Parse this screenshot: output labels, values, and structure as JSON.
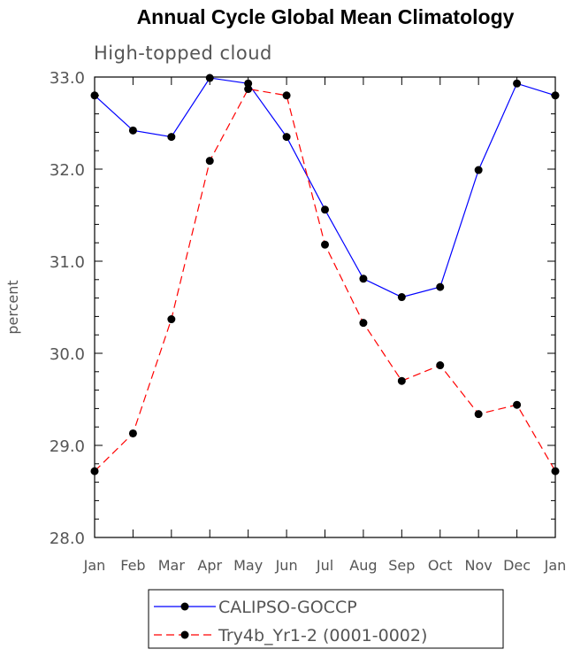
{
  "chart_data": {
    "type": "line",
    "title": "Annual Cycle Global Mean Climatology",
    "subtitle": "High-topped cloud",
    "xlabel": "",
    "ylabel": "percent",
    "categories": [
      "Jan",
      "Feb",
      "Mar",
      "Apr",
      "May",
      "Jun",
      "Jul",
      "Aug",
      "Sep",
      "Oct",
      "Nov",
      "Dec",
      "Jan"
    ],
    "ylim": [
      28.0,
      33.0
    ],
    "yticks": [
      "28.0",
      "29.0",
      "30.0",
      "31.0",
      "32.0",
      "33.0"
    ],
    "series": [
      {
        "name": "CALIPSO-GOCCP",
        "color": "#0000ff",
        "dash": "solid",
        "values": [
          32.8,
          32.42,
          32.35,
          32.99,
          32.93,
          32.35,
          31.56,
          30.81,
          30.61,
          30.72,
          31.99,
          32.93,
          32.8
        ]
      },
      {
        "name": "Try4b_Yr1-2 (0001-0002)",
        "color": "#ff0000",
        "dash": "dashed",
        "values": [
          28.72,
          29.13,
          30.37,
          32.09,
          32.87,
          32.8,
          31.18,
          30.33,
          29.7,
          29.87,
          29.34,
          29.44,
          28.72
        ]
      }
    ],
    "legend": "bottom-center",
    "grid": false
  }
}
